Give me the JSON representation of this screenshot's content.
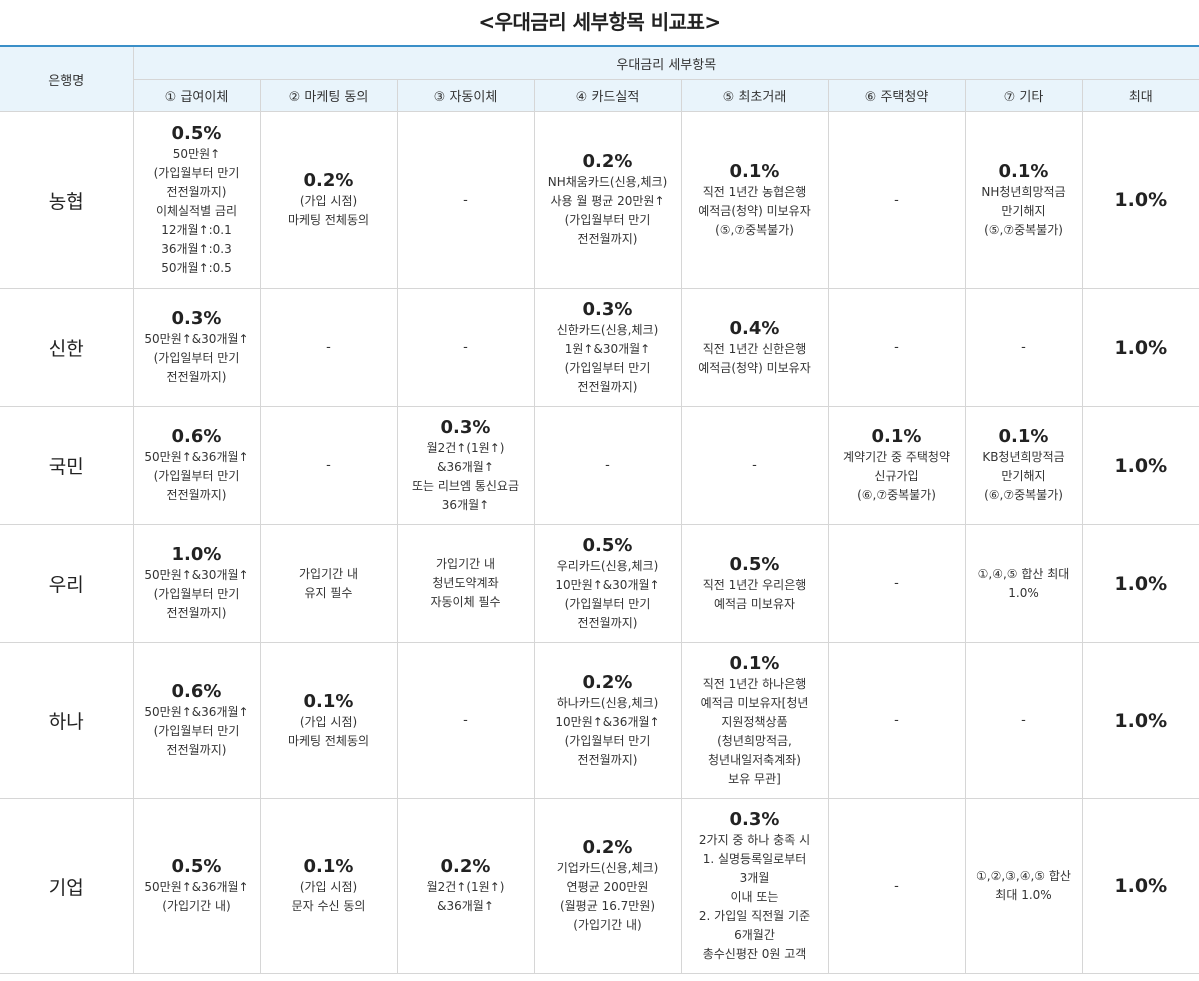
{
  "title": "<우대금리 세부항목 비교표>",
  "header": {
    "bank": "은행명",
    "group": "우대금리 세부항목",
    "columns": [
      "① 급여이체",
      "② 마케팅 동의",
      "③ 자동이체",
      "④ 카드실적",
      "⑤ 최초거래",
      "⑥ 주택청약",
      "⑦ 기타",
      "최대"
    ]
  },
  "rows": [
    {
      "bank": "농협",
      "cells": [
        {
          "rate": "0.5%",
          "lines": [
            "50만원↑",
            "(가입월부터 만기",
            "전전월까지)",
            "이체실적별 금리",
            "12개월↑:0.1",
            "36개월↑:0.3",
            "50개월↑:0.5"
          ]
        },
        {
          "rate": "0.2%",
          "lines": [
            "(가입 시점)",
            "마케팅 전체동의"
          ]
        },
        {
          "rate": "",
          "lines": [
            "-"
          ]
        },
        {
          "rate": "0.2%",
          "lines": [
            "NH채움카드(신용,체크)",
            "사용 월 평균 20만원↑",
            "(가입월부터 만기",
            "전전월까지)"
          ]
        },
        {
          "rate": "0.1%",
          "lines": [
            "직전 1년간 농협은행",
            "예적금(청약) 미보유자",
            "(⑤,⑦중복불가)"
          ]
        },
        {
          "rate": "",
          "lines": [
            "-"
          ]
        },
        {
          "rate": "0.1%",
          "lines": [
            "NH청년희망적금",
            "만기해지",
            "(⑤,⑦중복불가)"
          ]
        }
      ],
      "max": "1.0%"
    },
    {
      "bank": "신한",
      "cells": [
        {
          "rate": "0.3%",
          "lines": [
            "50만원↑&30개월↑",
            "(가입일부터 만기",
            "전전월까지)"
          ]
        },
        {
          "rate": "",
          "lines": [
            "-"
          ]
        },
        {
          "rate": "",
          "lines": [
            "-"
          ]
        },
        {
          "rate": "0.3%",
          "lines": [
            "신한카드(신용,체크)",
            "1원↑&30개월↑",
            "(가입일부터 만기",
            "전전월까지)"
          ]
        },
        {
          "rate": "0.4%",
          "lines": [
            "직전 1년간 신한은행",
            "예적금(청약) 미보유자"
          ]
        },
        {
          "rate": "",
          "lines": [
            "-"
          ]
        },
        {
          "rate": "",
          "lines": [
            "-"
          ]
        }
      ],
      "max": "1.0%"
    },
    {
      "bank": "국민",
      "cells": [
        {
          "rate": "0.6%",
          "lines": [
            "50만원↑&36개월↑",
            "(가입월부터 만기",
            "전전월까지)"
          ]
        },
        {
          "rate": "",
          "lines": [
            "-"
          ]
        },
        {
          "rate": "0.3%",
          "lines": [
            "월2건↑(1원↑)",
            "&36개월↑",
            "또는 리브엠 통신요금",
            "36개월↑"
          ]
        },
        {
          "rate": "",
          "lines": [
            "-"
          ]
        },
        {
          "rate": "",
          "lines": [
            "-"
          ]
        },
        {
          "rate": "0.1%",
          "lines": [
            "계약기간 중 주택청약",
            "신규가입",
            "(⑥,⑦중복불가)"
          ]
        },
        {
          "rate": "0.1%",
          "lines": [
            "KB청년희망적금",
            "만기해지",
            "(⑥,⑦중복불가)"
          ]
        }
      ],
      "max": "1.0%"
    },
    {
      "bank": "우리",
      "cells": [
        {
          "rate": "1.0%",
          "lines": [
            "50만원↑&30개월↑",
            "(가입월부터 만기",
            "전전월까지)"
          ]
        },
        {
          "rate": "",
          "lines": [
            "가입기간 내",
            "유지 필수"
          ]
        },
        {
          "rate": "",
          "lines": [
            "가입기간 내",
            "청년도약계좌",
            "자동이체 필수"
          ]
        },
        {
          "rate": "0.5%",
          "lines": [
            "우리카드(신용,체크)",
            "10만원↑&30개월↑",
            "(가입월부터 만기",
            "전전월까지)"
          ]
        },
        {
          "rate": "0.5%",
          "lines": [
            "직전 1년간 우리은행",
            "예적금 미보유자"
          ]
        },
        {
          "rate": "",
          "lines": [
            "-"
          ]
        },
        {
          "rate": "",
          "lines": [
            "①,④,⑤ 합산 최대",
            "1.0%"
          ]
        }
      ],
      "max": "1.0%"
    },
    {
      "bank": "하나",
      "cells": [
        {
          "rate": "0.6%",
          "lines": [
            "50만원↑&36개월↑",
            "(가입월부터 만기",
            "전전월까지)"
          ]
        },
        {
          "rate": "0.1%",
          "lines": [
            "(가입 시점)",
            "마케팅 전체동의"
          ]
        },
        {
          "rate": "",
          "lines": [
            "-"
          ]
        },
        {
          "rate": "0.2%",
          "lines": [
            "하나카드(신용,체크)",
            "10만원↑&36개월↑",
            "(가입월부터 만기",
            "전전월까지)"
          ]
        },
        {
          "rate": "0.1%",
          "lines": [
            "직전 1년간 하나은행",
            "예적금 미보유자[청년",
            "지원정책상품",
            "(청년희망적금,",
            "청년내일저축계좌)",
            "보유 무관]"
          ]
        },
        {
          "rate": "",
          "lines": [
            "-"
          ]
        },
        {
          "rate": "",
          "lines": [
            "-"
          ]
        }
      ],
      "max": "1.0%"
    },
    {
      "bank": "기업",
      "cells": [
        {
          "rate": "0.5%",
          "lines": [
            "50만원↑&36개월↑",
            "(가입기간 내)"
          ]
        },
        {
          "rate": "0.1%",
          "lines": [
            "(가입 시점)",
            "문자 수신 동의"
          ]
        },
        {
          "rate": "0.2%",
          "lines": [
            "월2건↑(1원↑)",
            "&36개월↑"
          ]
        },
        {
          "rate": "0.2%",
          "lines": [
            "기업카드(신용,체크)",
            "연평균 200만원",
            "(월평균 16.7만원)",
            "(가입기간 내)"
          ]
        },
        {
          "rate": "0.3%",
          "lines": [
            "2가지 중 하나 충족 시",
            "1. 실명등록일로부터",
            "3개월",
            "이내 또는",
            "2. 가입일 직전월 기준",
            "6개월간",
            "총수신평잔 0원 고객"
          ]
        },
        {
          "rate": "",
          "lines": [
            "-"
          ]
        },
        {
          "rate": "",
          "lines": [
            "①,②,③,④,⑤ 합산",
            "최대 1.0%"
          ]
        }
      ],
      "max": "1.0%"
    }
  ]
}
